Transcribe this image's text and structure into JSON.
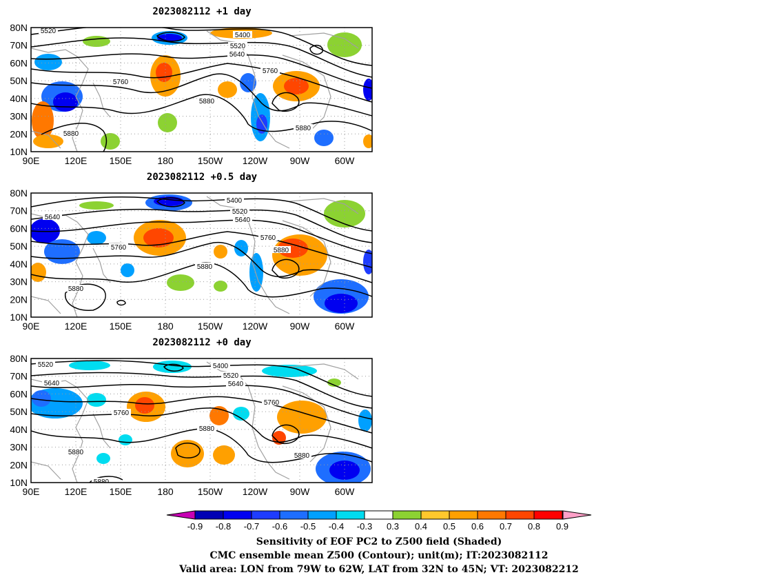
{
  "panels": [
    {
      "title": "2023082112 +1 day",
      "contours": [
        {
          "label": "5520"
        },
        {
          "label": "5400"
        },
        {
          "label": "5520"
        },
        {
          "label": "5640"
        },
        {
          "label": "5760"
        },
        {
          "label": "5760"
        },
        {
          "label": "5880"
        },
        {
          "label": "5880"
        },
        {
          "label": "5880"
        }
      ]
    },
    {
      "title": "2023082112 +0.5 day",
      "contours": [
        {
          "label": "5640"
        },
        {
          "label": "5400"
        },
        {
          "label": "5520"
        },
        {
          "label": "5640"
        },
        {
          "label": "5760"
        },
        {
          "label": "5760"
        },
        {
          "label": "5880"
        },
        {
          "label": "5880"
        },
        {
          "label": "5880"
        }
      ]
    },
    {
      "title": "2023082112 +0 day",
      "contours": [
        {
          "label": "5520"
        },
        {
          "label": "5640"
        },
        {
          "label": "5400"
        },
        {
          "label": "5520"
        },
        {
          "label": "5640"
        },
        {
          "label": "5760"
        },
        {
          "label": "5760"
        },
        {
          "label": "5880"
        },
        {
          "label": "5880"
        },
        {
          "label": "5880"
        },
        {
          "label": "5880"
        }
      ]
    }
  ],
  "lat_ticks": [
    "80N",
    "70N",
    "60N",
    "50N",
    "40N",
    "30N",
    "20N",
    "10N"
  ],
  "lon_ticks": [
    "90E",
    "120E",
    "150E",
    "180",
    "150W",
    "120W",
    "90W",
    "60W"
  ],
  "colorbar": {
    "labels": [
      "-0.9",
      "-0.8",
      "-0.7",
      "-0.6",
      "-0.5",
      "-0.4",
      "-0.3",
      "0.3",
      "0.4",
      "0.5",
      "0.6",
      "0.7",
      "0.8",
      "0.9"
    ],
    "colors": [
      "#0000b4",
      "#0000f0",
      "#1e3cff",
      "#1e6eff",
      "#00a0ff",
      "#00dcf0",
      "#ffffff",
      "#8cd232",
      "#ffc82d",
      "#ffa000",
      "#ff7800",
      "#ff4600",
      "#ff0000"
    ],
    "low_color": "#c800b4",
    "high_color": "#ffa0c8"
  },
  "caption": {
    "line1": "Sensitivity of EOF PC2 to Z500 field (Shaded)",
    "line2": "CMC ensemble mean Z500 (Contour); unit(m); IT:2023082112",
    "line3": "Valid area: LON from 79W to 62W, LAT from 32N to 45N; VT: 2023082212"
  }
}
